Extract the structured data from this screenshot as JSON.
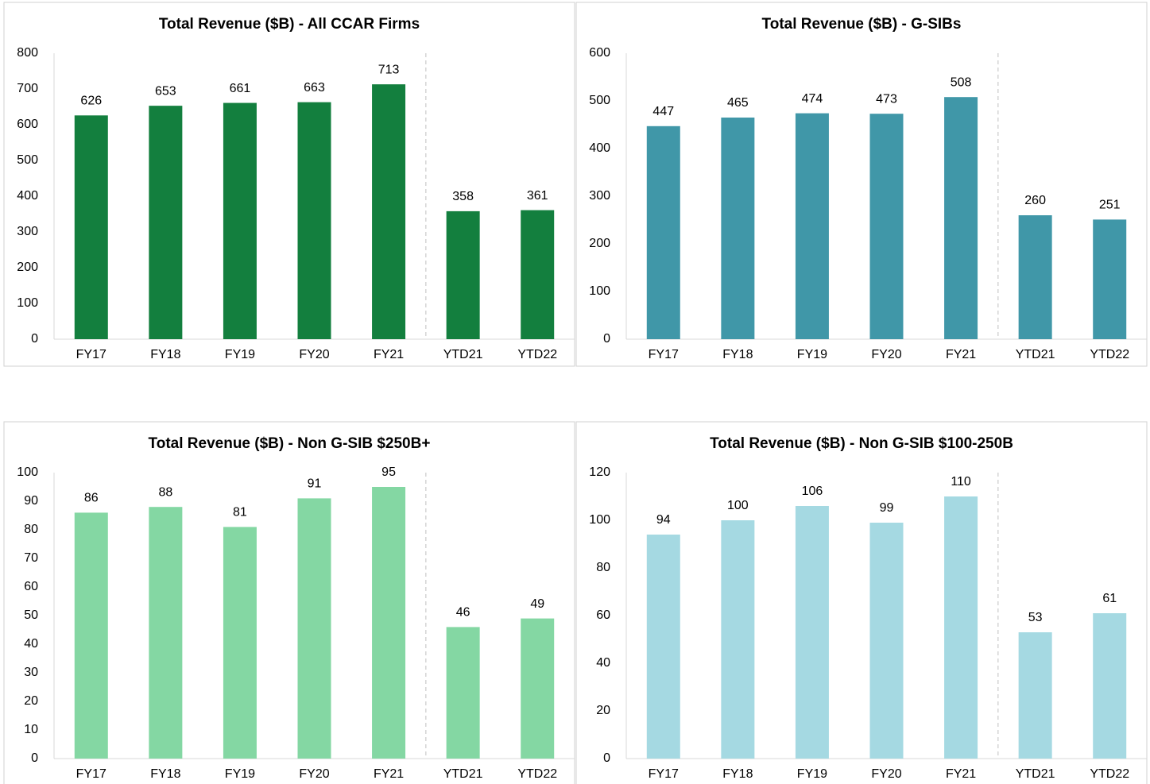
{
  "chart_data": [
    {
      "type": "bar",
      "title": "Total Revenue ($B) - All CCAR Firms",
      "categories": [
        "FY17",
        "FY18",
        "FY19",
        "FY20",
        "FY21",
        "YTD21",
        "YTD22"
      ],
      "values": [
        626,
        653,
        661,
        663,
        713,
        358,
        361
      ],
      "color": "#137f3e",
      "ylim": [
        0,
        800
      ],
      "yticks": [
        0,
        100,
        200,
        300,
        400,
        500,
        600,
        700,
        800
      ]
    },
    {
      "type": "bar",
      "title": "Total Revenue ($B) - G-SIBs",
      "categories": [
        "FY17",
        "FY18",
        "FY19",
        "FY20",
        "FY21",
        "YTD21",
        "YTD22"
      ],
      "values": [
        447,
        465,
        474,
        473,
        508,
        260,
        251
      ],
      "color": "#4097a8",
      "ylim": [
        0,
        600
      ],
      "yticks": [
        0,
        100,
        200,
        300,
        400,
        500,
        600
      ]
    },
    {
      "type": "bar",
      "title": "Total Revenue ($B) - Non G-SIB $250B+",
      "categories": [
        "FY17",
        "FY18",
        "FY19",
        "FY20",
        "FY21",
        "YTD21",
        "YTD22"
      ],
      "values": [
        86,
        88,
        81,
        91,
        95,
        46,
        49
      ],
      "color": "#84d7a3",
      "ylim": [
        0,
        100
      ],
      "yticks": [
        0,
        10,
        20,
        30,
        40,
        50,
        60,
        70,
        80,
        90,
        100
      ]
    },
    {
      "type": "bar",
      "title": "Total Revenue ($B) - Non G-SIB $100-250B",
      "categories": [
        "FY17",
        "FY18",
        "FY19",
        "FY20",
        "FY21",
        "YTD21",
        "YTD22"
      ],
      "values": [
        94,
        100,
        106,
        99,
        110,
        53,
        61
      ],
      "color": "#a5d9e2",
      "ylim": [
        0,
        120
      ],
      "yticks": [
        0,
        20,
        40,
        60,
        80,
        100,
        120
      ]
    }
  ]
}
